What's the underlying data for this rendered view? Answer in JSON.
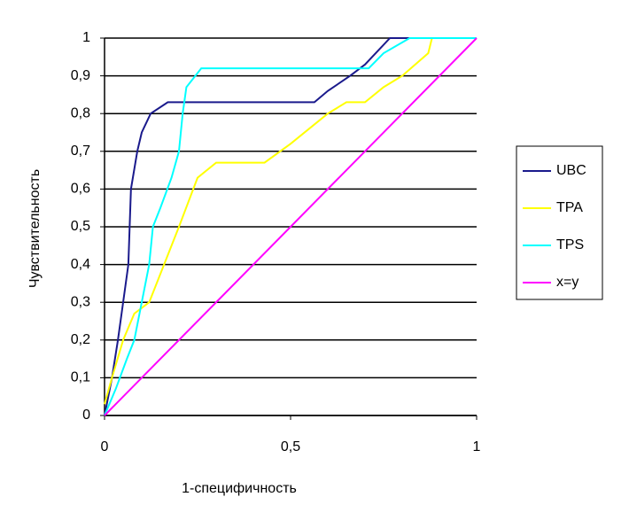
{
  "chart_data": {
    "type": "line",
    "xlabel": "1-специфичность",
    "ylabel": "Чувствительность",
    "xlim": [
      0,
      1
    ],
    "ylim": [
      0,
      1
    ],
    "xticks": [
      0,
      {
        "value": 0.5,
        "label": "0,5"
      },
      1
    ],
    "yticks": [
      0,
      {
        "value": 0.1,
        "label": "0,1"
      },
      {
        "value": 0.2,
        "label": "0,2"
      },
      {
        "value": 0.3,
        "label": "0,3"
      },
      {
        "value": 0.4,
        "label": "0,4"
      },
      {
        "value": 0.5,
        "label": "0,5"
      },
      {
        "value": 0.6,
        "label": "0,6"
      },
      {
        "value": 0.7,
        "label": "0,7"
      },
      {
        "value": 0.8,
        "label": "0,8"
      },
      {
        "value": 0.9,
        "label": "0,9"
      },
      1
    ],
    "grid": true,
    "legend": "right",
    "series": [
      {
        "name": "UBC",
        "color": "#1a1a8c",
        "x": [
          0,
          0.02,
          0.036,
          0.05,
          0.064,
          0.071,
          0.088,
          0.1,
          0.124,
          0.17,
          0.564,
          0.6,
          0.66,
          0.7,
          0.767,
          0.82
        ],
        "values": [
          0,
          0.1,
          0.2,
          0.3,
          0.4,
          0.6,
          0.7,
          0.75,
          0.8,
          0.83,
          0.83,
          0.86,
          0.9,
          0.93,
          1,
          1
        ]
      },
      {
        "name": "TPA",
        "color": "#ffff00",
        "x": [
          0,
          0.02,
          0.05,
          0.08,
          0.12,
          0.16,
          0.2,
          0.25,
          0.3,
          0.43,
          0.5,
          0.6,
          0.65,
          0.7,
          0.75,
          0.8,
          0.87,
          0.88,
          1
        ],
        "values": [
          0.03,
          0.1,
          0.2,
          0.27,
          0.3,
          0.4,
          0.5,
          0.63,
          0.67,
          0.67,
          0.72,
          0.8,
          0.83,
          0.83,
          0.87,
          0.9,
          0.96,
          1,
          1
        ]
      },
      {
        "name": "TPS",
        "color": "#00ffff",
        "x": [
          0,
          0.03,
          0.06,
          0.08,
          0.1,
          0.12,
          0.13,
          0.15,
          0.18,
          0.2,
          0.21,
          0.22,
          0.26,
          0.71,
          0.75,
          0.82,
          1
        ],
        "values": [
          0,
          0.07,
          0.15,
          0.2,
          0.3,
          0.4,
          0.5,
          0.55,
          0.63,
          0.7,
          0.8,
          0.87,
          0.92,
          0.92,
          0.96,
          1,
          1
        ]
      },
      {
        "name": "x=y",
        "color": "#ff00ff",
        "x": [
          0,
          1
        ],
        "values": [
          0,
          1
        ]
      }
    ]
  }
}
